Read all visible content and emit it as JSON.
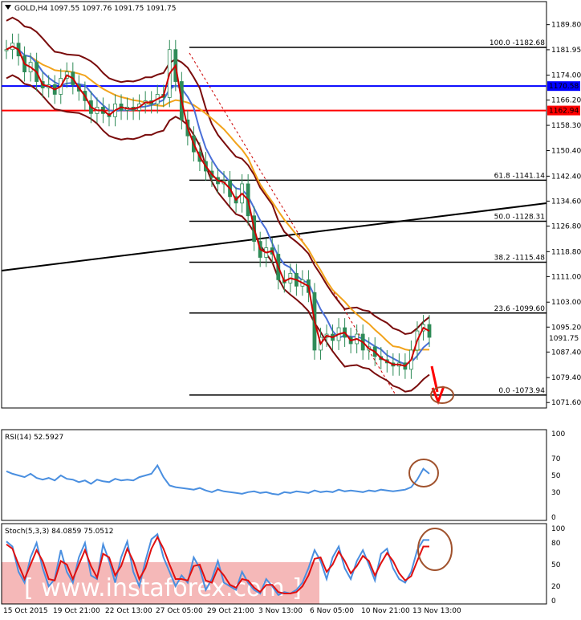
{
  "header": {
    "symbol_label": "GOLD,H4",
    "ohlc_label": "1097.55 1097.76 1091.75 1091.75"
  },
  "colors": {
    "background": "#ffffff",
    "candle_bull": "#2e8b57",
    "candle_bear": "#2e8b57",
    "bollinger": "#7a0c0c",
    "ema_fast": "#cc0000",
    "ma_blue": "#4a6fd8",
    "ma_orange": "#f2a31b",
    "resistance_blue": "#0000ff",
    "resistance_red": "#ff0000",
    "fib": "#000000",
    "trendline": "#000000",
    "annotation": "#a0522d",
    "rsi_line": "#4a8fe0",
    "stoch_main": "#4a8fe0",
    "stoch_signal": "#e01010",
    "watermark_bg": "#f4b0b0",
    "watermark_text": "#ffffff"
  },
  "price_axis": {
    "ticks": [
      "1189.80",
      "1181.95",
      "1174.00",
      "1166.20",
      "1158.30",
      "1150.40",
      "1142.40",
      "1134.60",
      "1126.80",
      "1118.80",
      "1111.00",
      "1103.00",
      "1095.20",
      "1087.40",
      "1079.40",
      "1071.60"
    ],
    "current_price": "1091.75",
    "level_blue": "1170.58",
    "level_red": "1162.94"
  },
  "fib_levels": [
    {
      "label": "100.0 -1182.68",
      "price": 1182.68
    },
    {
      "label": "61.8 -1141.14",
      "price": 1141.14
    },
    {
      "label": "50.0 -1128.31",
      "price": 1128.31
    },
    {
      "label": "38.2 -1115.48",
      "price": 1115.48
    },
    {
      "label": "23.6 -1099.60",
      "price": 1099.6
    },
    {
      "label": "0.0 -1073.94",
      "price": 1073.94
    }
  ],
  "rsi": {
    "title": "RSI(14) 52.5927",
    "ticks": [
      "100",
      "70",
      "50",
      "30",
      "0"
    ]
  },
  "stoch": {
    "title": "Stoch(5,3,3) 84.0859 75.0512",
    "ticks": [
      "100",
      "80",
      "50",
      "20",
      "0"
    ]
  },
  "time_axis": {
    "labels": [
      "15 Oct 2015",
      "19 Oct 21:00",
      "22 Oct 13:00",
      "27 Oct 05:00",
      "29 Oct 21:00",
      "3 Nov 13:00",
      "6 Nov 05:00",
      "10 Nov 21:00",
      "13 Nov 13:00"
    ]
  },
  "watermark": {
    "text": "[ www.instaforex.com ]"
  },
  "chart_data": {
    "type": "line",
    "title": "GOLD,H4",
    "ylabel": "",
    "xlabel": "",
    "ylim": [
      1069.9,
      1197.0
    ],
    "price_points": [
      1182,
      1184,
      1180,
      1175,
      1178,
      1172,
      1170,
      1171,
      1168,
      1173,
      1175,
      1171,
      1169,
      1166,
      1162,
      1164,
      1162,
      1161,
      1165,
      1163,
      1164,
      1163,
      1165,
      1166,
      1165,
      1168,
      1167,
      1182,
      1172,
      1160,
      1155,
      1150,
      1147,
      1144,
      1142,
      1140,
      1141,
      1136,
      1134,
      1140,
      1130,
      1122,
      1117,
      1120,
      1118,
      1110,
      1109,
      1112,
      1108,
      1110,
      1106,
      1088,
      1092,
      1093,
      1091,
      1095,
      1092,
      1090,
      1093,
      1088,
      1089,
      1086,
      1085,
      1084,
      1083,
      1084,
      1082,
      1088,
      1094,
      1096,
      1092
    ],
    "rsi_values": [
      55,
      52,
      50,
      48,
      52,
      47,
      45,
      47,
      44,
      50,
      46,
      45,
      42,
      44,
      40,
      45,
      43,
      42,
      46,
      44,
      45,
      44,
      48,
      50,
      52,
      62,
      48,
      38,
      36,
      35,
      34,
      33,
      35,
      32,
      30,
      33,
      31,
      30,
      29,
      28,
      30,
      31,
      29,
      30,
      28,
      27,
      30,
      29,
      31,
      30,
      29,
      32,
      30,
      31,
      30,
      33,
      31,
      32,
      31,
      30,
      32,
      31,
      33,
      32,
      31,
      32,
      33,
      36,
      45,
      58,
      52
    ],
    "stoch_main": [
      82,
      75,
      40,
      25,
      60,
      80,
      45,
      20,
      30,
      70,
      40,
      25,
      60,
      80,
      35,
      30,
      78,
      55,
      25,
      60,
      82,
      40,
      20,
      55,
      85,
      92,
      60,
      40,
      20,
      35,
      25,
      60,
      45,
      15,
      30,
      55,
      25,
      20,
      15,
      40,
      25,
      15,
      10,
      30,
      20,
      8,
      12,
      10,
      15,
      25,
      45,
      70,
      55,
      30,
      60,
      75,
      45,
      30,
      55,
      70,
      50,
      28,
      65,
      72,
      45,
      30,
      25,
      40,
      70,
      84,
      84
    ],
    "stoch_signal": [
      78,
      72,
      50,
      30,
      50,
      70,
      55,
      30,
      28,
      55,
      50,
      30,
      50,
      70,
      48,
      32,
      65,
      60,
      35,
      48,
      72,
      55,
      30,
      45,
      72,
      88,
      72,
      50,
      30,
      30,
      28,
      48,
      50,
      28,
      25,
      45,
      35,
      22,
      18,
      30,
      28,
      18,
      12,
      22,
      22,
      12,
      10,
      10,
      12,
      20,
      35,
      58,
      60,
      40,
      50,
      68,
      55,
      38,
      48,
      62,
      55,
      35,
      52,
      66,
      55,
      38,
      28,
      34,
      55,
      75,
      75
    ],
    "annotation_target": 1073.94
  }
}
